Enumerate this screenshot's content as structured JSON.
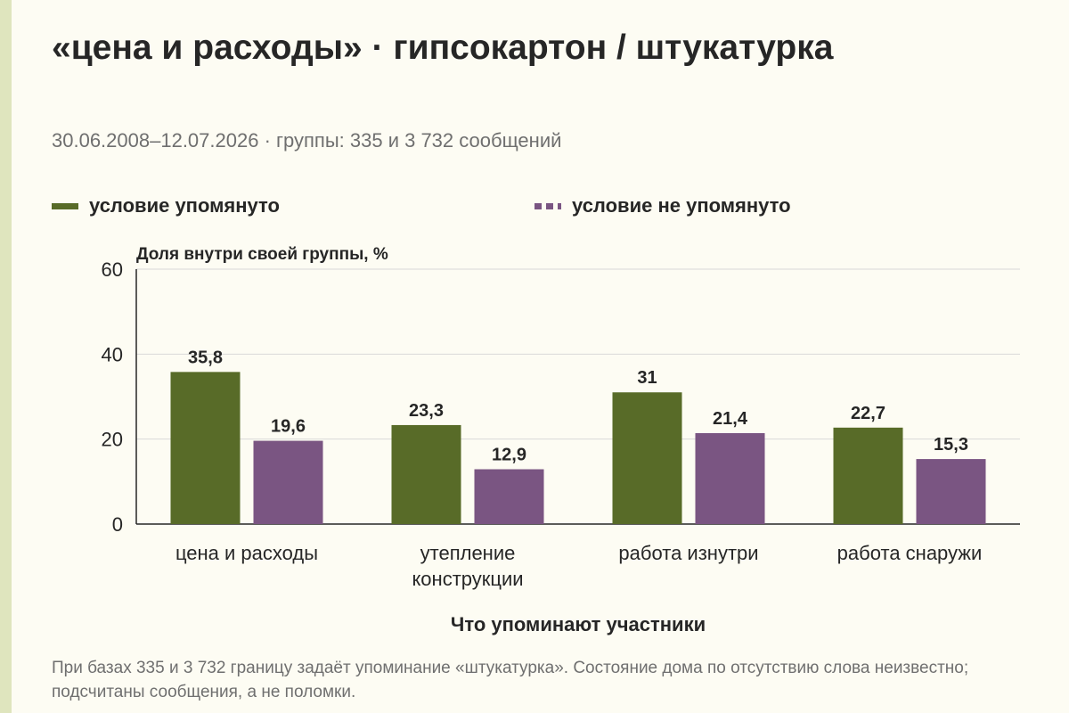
{
  "title": "«цена и расходы» · гипсокартон / штукатурка",
  "subtitle": "30.06.2008–12.07.2026 · группы: 335 и 3 732 сообщений",
  "footnote": "При базах 335 и 3 732 границу задаёт упоминание «штукатурка». Состояние дома по отсутствию слова неизвестно; подсчитаны сообщения, а не поломки.",
  "colors": {
    "accent": "#dfe5be",
    "series_mentioned": "#586b28",
    "series_not_mentioned": "#7a5582"
  },
  "chart_data": {
    "type": "bar",
    "categories": [
      [
        "цена и расходы"
      ],
      [
        "утепление",
        "конструкции"
      ],
      [
        "работа изнутри"
      ],
      [
        "работа снаружи"
      ]
    ],
    "series": [
      {
        "name": "условие упомянуто",
        "values": [
          35.8,
          23.3,
          31,
          22.7
        ],
        "value_labels": [
          "35,8",
          "23,3",
          "31",
          "22,7"
        ]
      },
      {
        "name": "условие не упомянуто",
        "values": [
          19.6,
          12.9,
          21.4,
          15.3
        ],
        "value_labels": [
          "19,6",
          "12,9",
          "21,4",
          "15,3"
        ]
      }
    ],
    "ylabel": "Доля внутри своей группы, %",
    "xlabel": "Что упоминают участники",
    "ylim": [
      0,
      60
    ],
    "yticks": [
      0,
      20,
      40,
      60
    ],
    "grid": true,
    "legend_position": "top"
  }
}
